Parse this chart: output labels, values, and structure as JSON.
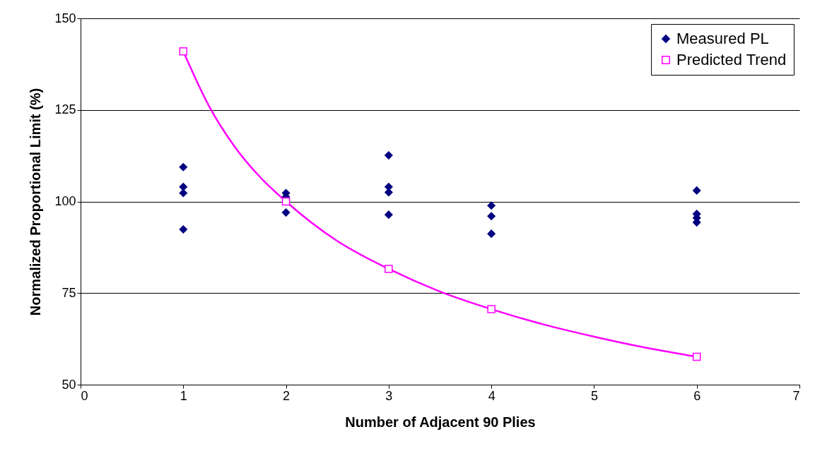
{
  "chart_data": {
    "type": "scatter",
    "xlabel": "Number of Adjacent 90 Plies",
    "ylabel": "Normalized Proportional Limit (%)",
    "xlim": [
      0,
      7
    ],
    "xticks": [
      0,
      1,
      2,
      3,
      4,
      5,
      6,
      7
    ],
    "ylim": [
      50,
      150
    ],
    "yticks": [
      50,
      75,
      100,
      125,
      150
    ],
    "grid": "y",
    "legend": "top right",
    "series": [
      {
        "name": "Measured PL",
        "marker": "diamond",
        "color": "#000080",
        "x": [
          1,
          1,
          1,
          1,
          2,
          2,
          2,
          3,
          3,
          3,
          3,
          4,
          4,
          4,
          6,
          6,
          6,
          6
        ],
        "values": [
          109.4,
          104,
          102.3,
          92.4,
          102.3,
          101.3,
          97,
          112.6,
          104,
          102.5,
          96.4,
          98.9,
          96,
          91.2,
          103,
          96.6,
          95.5,
          94.3
        ]
      },
      {
        "type": "line",
        "marker": "none",
        "color": "#ff00ff",
        "x": [
          1,
          1.25,
          1.5,
          1.75,
          2,
          2.5,
          3,
          3.5,
          4,
          4.5,
          5,
          5.5,
          6
        ],
        "values": [
          141,
          126.1,
          115,
          106.6,
          100,
          89.2,
          81.6,
          75.4,
          70.6,
          66.5,
          63.1,
          60.1,
          57.6
        ]
      },
      {
        "name": "Predicted Trend",
        "marker": "square",
        "color": "#ff00ff",
        "x": [
          1,
          2,
          3,
          4,
          6
        ],
        "values": [
          141,
          100,
          81.6,
          70.6,
          57.6
        ]
      }
    ]
  }
}
